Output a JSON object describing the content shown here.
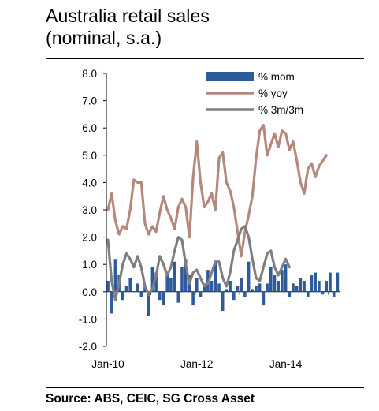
{
  "title_line1": "Australia retail sales",
  "title_line2": "(nominal, s.a.)",
  "source": "Source: ABS, CEIC, SG Cross Asset",
  "chart_data": {
    "type": "bar+line",
    "ylim": [
      -2.0,
      8.0
    ],
    "y_ticks": [
      "8.0",
      "7.0",
      "6.0",
      "5.0",
      "4.0",
      "3.0",
      "2.0",
      "1.0",
      "0.0",
      "-1.0",
      "-2.0"
    ],
    "x_tick_labels": [
      "Jan-10",
      "Jan-12",
      "Jan-14"
    ],
    "x_tick_month_index": [
      0,
      24,
      48
    ],
    "grid": false,
    "legend_position": "top-right",
    "colors": {
      "mom": "#2e5b9a",
      "yoy": "#b4887a",
      "m3m3": "#7f7f7f"
    },
    "series": [
      {
        "name": "% mom",
        "type": "bar",
        "values": [
          0.4,
          -0.8,
          1.2,
          0.6,
          -0.3,
          0.2,
          0.5,
          0.0,
          0.3,
          -0.2,
          0.2,
          -0.9,
          0.9,
          0.7,
          -0.3,
          -0.5,
          0.6,
          0.5,
          1.1,
          -0.4,
          0.9,
          1.2,
          0.6,
          -0.5,
          0.5,
          -0.2,
          0.3,
          0.8,
          0.4,
          1.1,
          0.3,
          -0.7,
          0.1,
          0.4,
          -0.3,
          0.2,
          0.5,
          -0.2,
          1.1,
          0.1,
          0.2,
          0.3,
          -0.5,
          0.3,
          0.9,
          0.6,
          0.4,
          0.8,
          1.0,
          -0.2,
          0.3,
          0.2,
          0.5,
          0.4,
          -0.2,
          0.6,
          0.7,
          0.4,
          -0.1,
          0.4,
          0.7,
          -0.2,
          0.7
        ]
      },
      {
        "name": "% yoy",
        "type": "line",
        "values": [
          3.0,
          3.6,
          2.6,
          2.1,
          2.4,
          2.3,
          3.0,
          4.1,
          4.0,
          4.0,
          2.5,
          2.1,
          2.4,
          2.2,
          2.9,
          3.5,
          3.0,
          2.7,
          2.3,
          3.1,
          3.4,
          3.1,
          2.0,
          4.2,
          5.5,
          4.0,
          3.1,
          3.3,
          3.6,
          3.0,
          4.9,
          5.1,
          4.0,
          3.7,
          3.1,
          2.2,
          1.3,
          2.2,
          2.8,
          3.5,
          4.9,
          5.9,
          6.1,
          5.0,
          5.4,
          5.8,
          5.3,
          5.9,
          5.8,
          5.2,
          5.5,
          4.8,
          4.0,
          3.6,
          4.5,
          4.7,
          4.2,
          4.6,
          4.8,
          5.0
        ]
      },
      {
        "name": "% 3m/3m",
        "type": "line",
        "values": [
          1.9,
          0.4,
          -0.3,
          0.3,
          1.0,
          1.4,
          1.2,
          0.9,
          1.3,
          0.9,
          0.2,
          -0.1,
          0.1,
          0.6,
          1.3,
          1.0,
          0.6,
          0.9,
          1.5,
          2.0,
          1.9,
          1.0,
          0.3,
          0.7,
          0.8,
          0.5,
          0.2,
          0.3,
          0.7,
          1.1,
          1.1,
          0.5,
          0.2,
          0.7,
          1.5,
          1.9,
          2.3,
          2.4,
          2.0,
          1.2,
          0.5,
          0.4,
          0.9,
          1.4,
          1.5,
          0.9,
          0.6,
          0.9,
          1.2,
          0.9
        ]
      }
    ]
  }
}
